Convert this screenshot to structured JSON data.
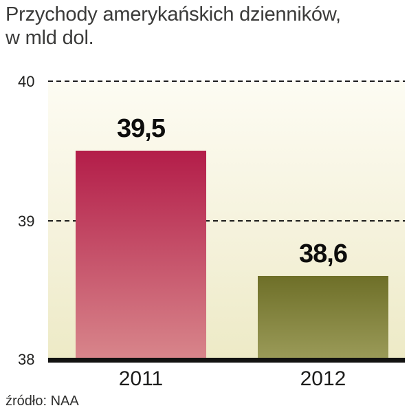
{
  "title": {
    "line1": "Przychody amerykańskich dzienników,",
    "line2": "w mld dol."
  },
  "source": "źródło: NAA",
  "chart_data": {
    "type": "bar",
    "title": "Przychody amerykańskich dzienników, w mld dol.",
    "categories": [
      "2011",
      "2012"
    ],
    "values": [
      39.5,
      38.6
    ],
    "value_labels": [
      "39,5",
      "38,6"
    ],
    "ylim": [
      38,
      40
    ],
    "yticks": [
      "40",
      "39",
      "38"
    ],
    "grid": "horizontal dashed lines at y=39 and y=40, solid black baseline at y=38",
    "legend": "none",
    "bar_colors": [
      {
        "top": "#b31d49",
        "bottom": "#d8868b"
      },
      {
        "top": "#6e6f28",
        "bottom": "#9b9b59"
      }
    ],
    "plot_bg_top": "#fdfcf3",
    "plot_bg_bottom": "#edeac6"
  }
}
